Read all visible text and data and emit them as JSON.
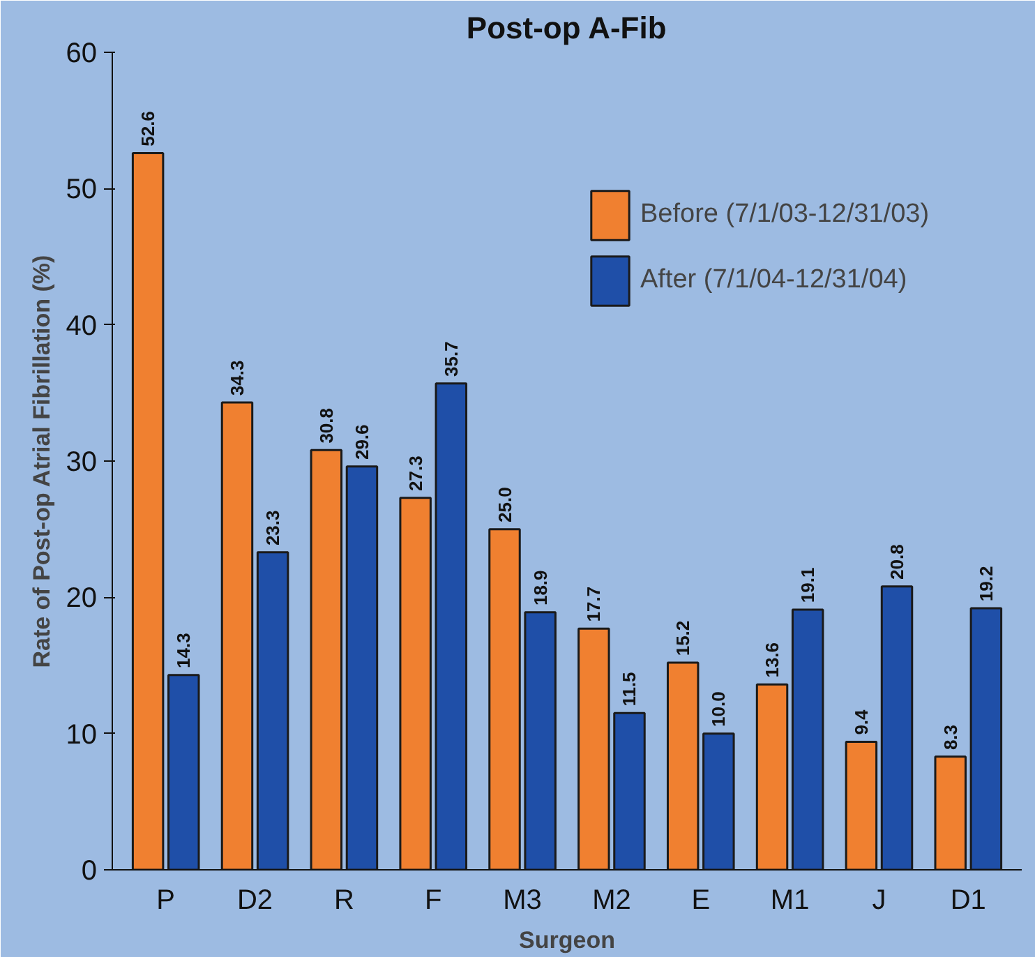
{
  "chart_data": {
    "type": "bar",
    "title": "Post-op A-Fib",
    "xlabel": "Surgeon",
    "ylabel": "Rate of Post-op Atrial Fibrillation (%)",
    "categories": [
      "P",
      "D2",
      "R",
      "F",
      "M3",
      "M2",
      "E",
      "M1",
      "J",
      "D1"
    ],
    "series": [
      {
        "name": "Before (7/1/03-12/31/03)",
        "color": "#f08030",
        "values": [
          52.6,
          34.3,
          30.8,
          27.3,
          25.0,
          17.7,
          15.2,
          13.6,
          9.4,
          8.3
        ],
        "value_labels": [
          "52.6",
          "34.3",
          "30.8",
          "27.3",
          "25.0",
          "17.7",
          "15.2",
          "13.6",
          "9.4",
          "8.3"
        ]
      },
      {
        "name": "After (7/1/04-12/31/04)",
        "color": "#1f4fa8",
        "values": [
          14.3,
          23.3,
          29.6,
          35.7,
          18.9,
          11.5,
          10.0,
          19.1,
          20.8,
          19.2
        ],
        "value_labels": [
          "14.3",
          "23.3",
          "29.6",
          "35.7",
          "18.9",
          "11.5",
          "10.0",
          "19.1",
          "20.8",
          "19.2"
        ]
      }
    ],
    "ylim": [
      0,
      60
    ],
    "yticks": [
      0,
      10,
      20,
      30,
      40,
      50,
      60
    ],
    "grid": false,
    "legend": "top right"
  }
}
